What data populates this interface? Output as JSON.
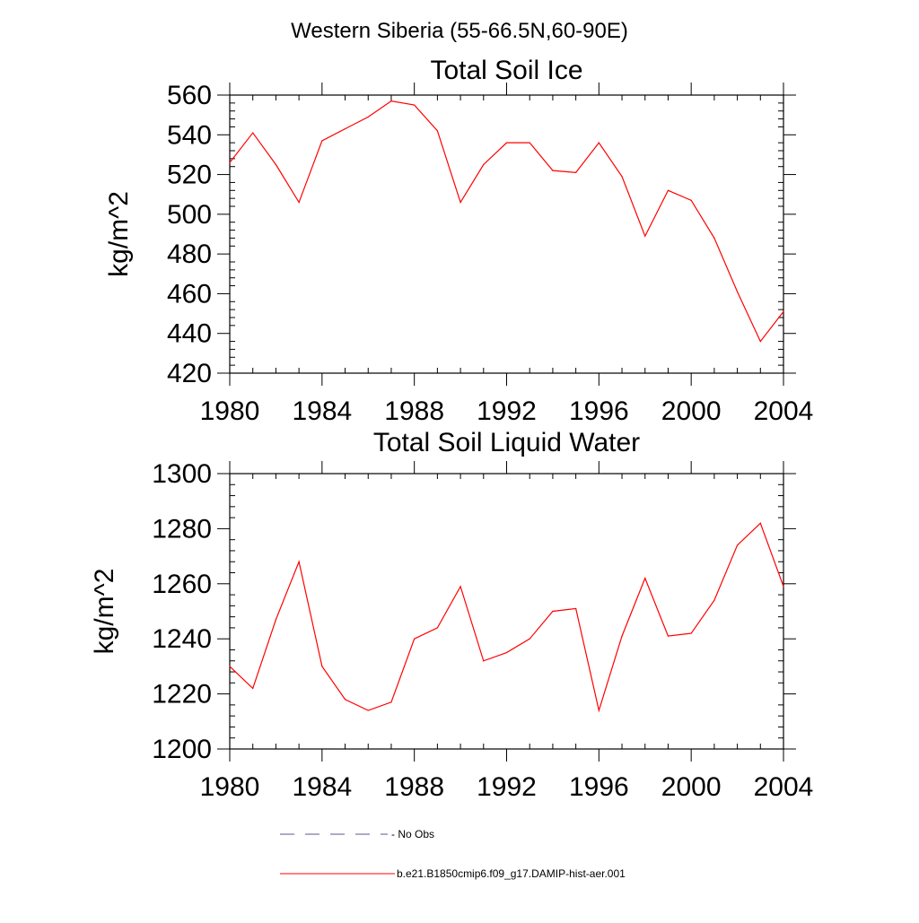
{
  "main_title": "Western Siberia (55-66.5N,60-90E)",
  "legend": [
    {
      "label": "No Obs",
      "color": "#5a5a8c",
      "style": "dashed"
    },
    {
      "label": "b.e21.B1850cmip6.f09_g17.DAMIP-hist-aer.001",
      "color": "#ff0000",
      "style": "solid"
    }
  ],
  "chart_data": [
    {
      "type": "line",
      "title": "Total Soil Ice",
      "ylabel": "kg/m^2",
      "xlabel": "",
      "xlim": [
        1980,
        2004
      ],
      "ylim": [
        420,
        560
      ],
      "xticks": [
        1980,
        1984,
        1988,
        1992,
        1996,
        2000,
        2004
      ],
      "yticks": [
        420,
        440,
        460,
        480,
        500,
        520,
        540,
        560
      ],
      "x": [
        1980,
        1981,
        1982,
        1983,
        1984,
        1985,
        1986,
        1987,
        1988,
        1989,
        1990,
        1991,
        1992,
        1993,
        1994,
        1995,
        1996,
        1997,
        1998,
        1999,
        2000,
        2001,
        2002,
        2003,
        2004
      ],
      "series": [
        {
          "name": "b.e21.B1850cmip6.f09_g17.DAMIP-hist-aer.001",
          "color": "#ff0000",
          "values": [
            526,
            541,
            525,
            506,
            537,
            543,
            549,
            557,
            555,
            542,
            506,
            525,
            536,
            536,
            522,
            521,
            536,
            519,
            489,
            512,
            507,
            488,
            461,
            436,
            451
          ]
        }
      ]
    },
    {
      "type": "line",
      "title": "Total Soil Liquid Water",
      "ylabel": "kg/m^2",
      "xlabel": "",
      "xlim": [
        1980,
        2004
      ],
      "ylim": [
        1200,
        1300
      ],
      "xticks": [
        1980,
        1984,
        1988,
        1992,
        1996,
        2000,
        2004
      ],
      "yticks": [
        1200,
        1220,
        1240,
        1260,
        1280,
        1300
      ],
      "x": [
        1980,
        1981,
        1982,
        1983,
        1984,
        1985,
        1986,
        1987,
        1988,
        1989,
        1990,
        1991,
        1992,
        1993,
        1994,
        1995,
        1996,
        1997,
        1998,
        1999,
        2000,
        2001,
        2002,
        2003,
        2004
      ],
      "series": [
        {
          "name": "b.e21.B1850cmip6.f09_g17.DAMIP-hist-aer.001",
          "color": "#ff0000",
          "values": [
            1230,
            1222,
            1247,
            1268,
            1230,
            1218,
            1214,
            1217,
            1240,
            1244,
            1259,
            1232,
            1235,
            1240,
            1250,
            1251,
            1214,
            1241,
            1262,
            1241,
            1242,
            1254,
            1274,
            1282,
            1259
          ]
        }
      ]
    }
  ]
}
